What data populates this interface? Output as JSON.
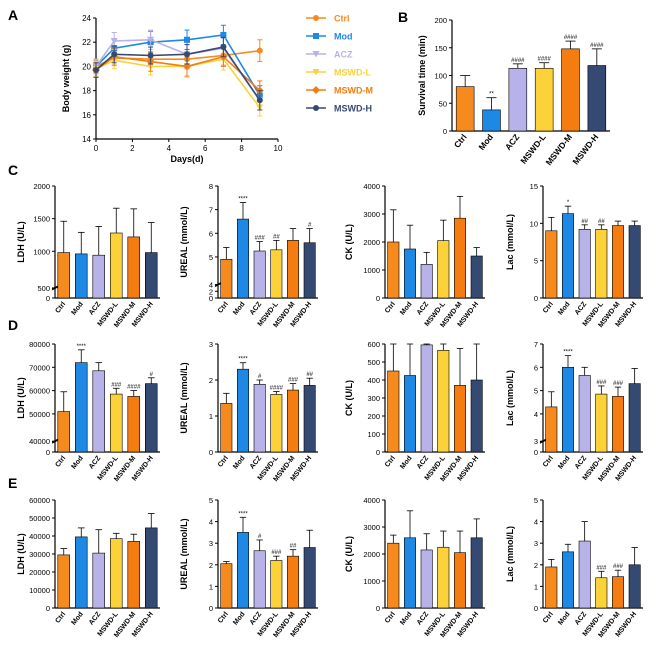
{
  "colors": {
    "Ctrl": "#F58A1F",
    "Mod": "#1E88E5",
    "ACZ": "#B7B3E8",
    "MSWD-L": "#FBD23A",
    "MSWD-M": "#F57C10",
    "MSWD-H": "#354A72"
  },
  "chart_data": [
    {
      "panel": "A",
      "type": "line",
      "xlabel": "Days(d)",
      "ylabel": "Body weight (g)",
      "xlim": [
        0,
        10
      ],
      "ylim": [
        14,
        24
      ],
      "xticks": [
        0,
        2,
        4,
        6,
        8,
        10
      ],
      "yticks": [
        14,
        16,
        18,
        20,
        22,
        24
      ],
      "x": [
        0,
        1,
        3,
        5,
        7,
        9
      ],
      "series": [
        {
          "name": "Ctrl",
          "values": [
            20.0,
            20.7,
            20.6,
            20.6,
            20.9,
            21.3
          ],
          "errors": [
            0.5,
            0.6,
            0.6,
            0.8,
            0.8,
            0.9
          ]
        },
        {
          "name": "Mod",
          "values": [
            20.0,
            21.5,
            22.0,
            22.2,
            22.6,
            17.6
          ],
          "errors": [
            0.6,
            0.7,
            0.9,
            0.8,
            0.8,
            0.8
          ]
        },
        {
          "name": "ACZ",
          "values": [
            20.0,
            22.1,
            22.2,
            21.0,
            21.5,
            17.2
          ],
          "errors": [
            0.6,
            0.7,
            0.8,
            0.8,
            0.8,
            0.8
          ]
        },
        {
          "name": "MSWD-L",
          "values": [
            19.8,
            20.5,
            20.0,
            20.0,
            20.6,
            16.6
          ],
          "errors": [
            0.6,
            0.7,
            0.7,
            0.9,
            0.9,
            0.7
          ]
        },
        {
          "name": "MSWD-M",
          "values": [
            19.7,
            20.8,
            20.4,
            20.0,
            20.8,
            18.0
          ],
          "errors": [
            0.6,
            0.7,
            0.8,
            0.8,
            0.8,
            0.8
          ]
        },
        {
          "name": "MSWD-H",
          "values": [
            19.7,
            21.0,
            20.9,
            21.0,
            21.6,
            17.2
          ],
          "errors": [
            0.6,
            0.7,
            0.7,
            0.8,
            0.8,
            0.8
          ]
        }
      ]
    },
    {
      "panel": "B",
      "type": "bar",
      "ylabel": "Survival time (min)",
      "ylim": [
        0,
        200
      ],
      "yticks": [
        0,
        50,
        100,
        150,
        200
      ],
      "categories": [
        "Ctrl",
        "Mod",
        "ACZ",
        "MSWD-L",
        "MSWD-M",
        "MSWD-H"
      ],
      "values": [
        80,
        38,
        113,
        113,
        148,
        118
      ],
      "errors": [
        20,
        22,
        8,
        10,
        14,
        30
      ],
      "sig": [
        "",
        "**",
        "####",
        "####",
        "####",
        "####"
      ]
    },
    {
      "panel": "C",
      "type": "bar",
      "ylabel": "LDH (U/L)",
      "ylim": [
        0,
        2000
      ],
      "yticks": [
        0,
        500,
        1000,
        1500,
        2000
      ],
      "categories": [
        "Ctrl",
        "Mod",
        "ACZ",
        "MSWD-L",
        "MSWD-M",
        "MSWD-H"
      ],
      "values": [
        980,
        960,
        940,
        1280,
        1220,
        980
      ],
      "errors": [
        480,
        330,
        440,
        380,
        430,
        460
      ],
      "sig": [
        "",
        "",
        "",
        "",
        "",
        ""
      ]
    },
    {
      "panel": "C",
      "type": "bar",
      "ylabel": "UREAL (mmol/L)",
      "ylim": [
        0,
        8
      ],
      "yticks": [
        0,
        2,
        4,
        5,
        6,
        7,
        8
      ],
      "categories": [
        "Ctrl",
        "Mod",
        "ACZ",
        "MSWD-L",
        "MSWD-M",
        "MSWD-H"
      ],
      "values": [
        4.9,
        6.6,
        5.25,
        5.3,
        5.7,
        5.6
      ],
      "errors": [
        0.5,
        0.7,
        0.4,
        0.4,
        0.5,
        0.6
      ],
      "sig": [
        "",
        "****",
        "###",
        "##",
        "",
        "#"
      ]
    },
    {
      "panel": "C",
      "type": "bar",
      "ylabel": "CK (U/L)",
      "ylim": [
        0,
        4000
      ],
      "yticks": [
        0,
        1000,
        2000,
        3000,
        4000
      ],
      "categories": [
        "Ctrl",
        "Mod",
        "ACZ",
        "MSWD-L",
        "MSWD-M",
        "MSWD-H"
      ],
      "values": [
        2000,
        1750,
        1200,
        2050,
        2850,
        1500
      ],
      "errors": [
        1150,
        850,
        430,
        730,
        780,
        300
      ],
      "sig": [
        "",
        "",
        "",
        "",
        "",
        ""
      ]
    },
    {
      "panel": "C",
      "type": "bar",
      "ylabel": "Lac (mmol/L)",
      "ylim": [
        0,
        15
      ],
      "yticks": [
        0,
        5,
        10,
        15
      ],
      "categories": [
        "Ctrl",
        "Mod",
        "ACZ",
        "MSWD-L",
        "MSWD-M",
        "MSWD-H"
      ],
      "values": [
        9.0,
        11.3,
        9.2,
        9.2,
        9.7,
        9.7
      ],
      "errors": [
        1.8,
        1.0,
        0.6,
        0.6,
        0.6,
        0.6
      ],
      "sig": [
        "",
        "*",
        "##",
        "##",
        "",
        ""
      ]
    },
    {
      "panel": "D",
      "type": "bar",
      "ylabel": "LDH (U/L)",
      "ylim": [
        0,
        80000
      ],
      "yticks": [
        0,
        40000,
        50000,
        60000,
        70000,
        80000
      ],
      "categories": [
        "Ctrl",
        "Mod",
        "ACZ",
        "MSWD-L",
        "MSWD-M",
        "MSWD-H"
      ],
      "values": [
        51000,
        72000,
        68500,
        58500,
        57500,
        63000
      ],
      "errors": [
        8500,
        5500,
        3500,
        2500,
        2500,
        2500
      ],
      "sig": [
        "",
        "****",
        "",
        "###",
        "####",
        "#"
      ]
    },
    {
      "panel": "D",
      "type": "bar",
      "ylabel": "UREAL (mmol/L)",
      "ylim": [
        0,
        3
      ],
      "yticks": [
        0,
        1,
        2,
        3
      ],
      "categories": [
        "Ctrl",
        "Mod",
        "ACZ",
        "MSWD-L",
        "MSWD-M",
        "MSWD-H"
      ],
      "values": [
        1.35,
        2.3,
        1.88,
        1.6,
        1.72,
        1.85
      ],
      "errors": [
        0.28,
        0.18,
        0.12,
        0.08,
        0.18,
        0.2
      ],
      "sig": [
        "",
        "****",
        "#",
        "####",
        "###",
        "##"
      ]
    },
    {
      "panel": "D",
      "type": "bar",
      "ylabel": "CK (U/L)",
      "ylim": [
        0,
        600
      ],
      "yticks": [
        0,
        100,
        200,
        300,
        400,
        500,
        600
      ],
      "categories": [
        "Ctrl",
        "Mod",
        "ACZ",
        "MSWD-L",
        "MSWD-M",
        "MSWD-H"
      ],
      "values": [
        450,
        425,
        595,
        565,
        370,
        400
      ],
      "errors": [
        245,
        275,
        190,
        235,
        205,
        235
      ],
      "sig": [
        "",
        "",
        "",
        "",
        "",
        ""
      ]
    },
    {
      "panel": "D",
      "type": "bar",
      "ylabel": "Lac (mmol/L)",
      "ylim": [
        0,
        7
      ],
      "yticks": [
        0,
        3,
        4,
        5,
        6,
        7
      ],
      "categories": [
        "Ctrl",
        "Mod",
        "ACZ",
        "MSWD-L",
        "MSWD-M",
        "MSWD-H"
      ],
      "values": [
        4.3,
        6.0,
        5.65,
        4.85,
        4.75,
        5.3
      ],
      "errors": [
        0.65,
        0.5,
        0.35,
        0.35,
        0.4,
        0.65
      ],
      "sig": [
        "",
        "****",
        "",
        "###",
        "###",
        ""
      ]
    },
    {
      "panel": "E",
      "type": "bar",
      "ylabel": "LDH (U/L)",
      "ylim": [
        0,
        60000
      ],
      "yticks": [
        0,
        10000,
        20000,
        30000,
        40000,
        50000,
        60000
      ],
      "categories": [
        "Ctrl",
        "Mod",
        "ACZ",
        "MSWD-L",
        "MSWD-M",
        "MSWD-H"
      ],
      "values": [
        29500,
        39500,
        30500,
        38500,
        37000,
        44500
      ],
      "errors": [
        3500,
        5000,
        13000,
        3000,
        4000,
        8000
      ],
      "sig": [
        "",
        "",
        "",
        "",
        "",
        ""
      ]
    },
    {
      "panel": "E",
      "type": "bar",
      "ylabel": "UREAL (mmol/L)",
      "ylim": [
        0,
        5
      ],
      "yticks": [
        0,
        1,
        2,
        3,
        4,
        5
      ],
      "categories": [
        "Ctrl",
        "Mod",
        "ACZ",
        "MSWD-L",
        "MSWD-M",
        "MSWD-H"
      ],
      "values": [
        2.05,
        3.5,
        2.65,
        2.2,
        2.4,
        2.8
      ],
      "errors": [
        0.1,
        0.7,
        0.5,
        0.2,
        0.3,
        0.8
      ],
      "sig": [
        "",
        "****",
        "#",
        "###",
        "##",
        ""
      ]
    },
    {
      "panel": "E",
      "type": "bar",
      "ylabel": "CK (U/L)",
      "ylim": [
        0,
        4000
      ],
      "yticks": [
        0,
        1000,
        2000,
        3000,
        4000
      ],
      "categories": [
        "Ctrl",
        "Mod",
        "ACZ",
        "MSWD-L",
        "MSWD-M",
        "MSWD-H"
      ],
      "values": [
        2400,
        2600,
        2150,
        2250,
        2050,
        2600
      ],
      "errors": [
        300,
        1000,
        600,
        600,
        800,
        700
      ],
      "sig": [
        "",
        "",
        "",
        "",
        "",
        ""
      ]
    },
    {
      "panel": "E",
      "type": "bar",
      "ylabel": "Lac (mmol/L)",
      "ylim": [
        0,
        5
      ],
      "yticks": [
        0,
        1,
        2,
        3,
        4,
        5
      ],
      "categories": [
        "Ctrl",
        "Mod",
        "ACZ",
        "MSWD-L",
        "MSWD-M",
        "MSWD-H"
      ],
      "values": [
        1.9,
        2.6,
        3.1,
        1.4,
        1.45,
        2.0
      ],
      "errors": [
        0.35,
        0.35,
        0.9,
        0.3,
        0.3,
        0.8
      ],
      "sig": [
        "",
        "",
        "",
        "###",
        "###",
        ""
      ]
    }
  ]
}
